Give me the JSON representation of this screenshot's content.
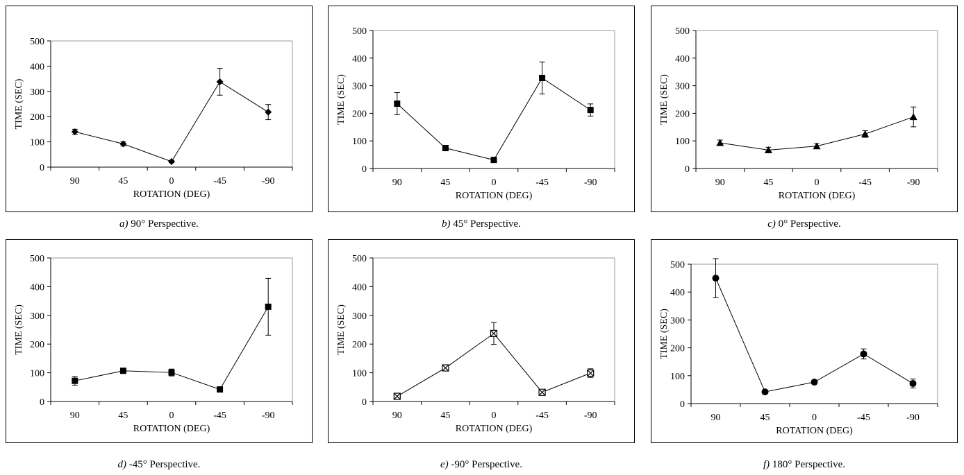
{
  "chart_data": [
    {
      "type": "line",
      "caption_label": "a)",
      "caption_text": "90° Perspective.",
      "xlabel": "ROTATION (DEG)",
      "ylabel": "TIME (SEC)",
      "categories": [
        "90",
        "45",
        "0",
        "-45",
        "-90"
      ],
      "y_ticks": [
        "0",
        "100",
        "200",
        "300",
        "400",
        "500"
      ],
      "ylim": [
        0,
        500
      ],
      "marker": "diamond",
      "series": [
        {
          "values": [
            140,
            92,
            22,
            338,
            218
          ],
          "errors": [
            10,
            8,
            4,
            53,
            30
          ]
        }
      ]
    },
    {
      "type": "line",
      "caption_label": "b)",
      "caption_text": "45° Perspective.",
      "xlabel": "ROTATION (DEG)",
      "ylabel": "TIME (SEC)",
      "categories": [
        "90",
        "45",
        "0",
        "-45",
        "-90"
      ],
      "y_ticks": [
        "0",
        "100",
        "200",
        "300",
        "400",
        "500"
      ],
      "ylim": [
        0,
        500
      ],
      "marker": "square",
      "series": [
        {
          "values": [
            235,
            74,
            31,
            328,
            212
          ],
          "errors": [
            40,
            6,
            4,
            58,
            22
          ]
        }
      ]
    },
    {
      "type": "line",
      "caption_label": "c)",
      "caption_text": "0° Perspective.",
      "xlabel": "ROTATION (DEG)",
      "ylabel": "TIME (SEC)",
      "categories": [
        "90",
        "45",
        "0",
        "-45",
        "-90"
      ],
      "y_ticks": [
        "0",
        "100",
        "200",
        "300",
        "400",
        "500"
      ],
      "ylim": [
        0,
        500
      ],
      "marker": "triangle",
      "series": [
        {
          "values": [
            93,
            67,
            81,
            125,
            187
          ],
          "errors": [
            10,
            10,
            9,
            12,
            36
          ]
        }
      ]
    },
    {
      "type": "line",
      "caption_label": "d)",
      "caption_text": "-45° Perspective.",
      "xlabel": "ROTATION (DEG)",
      "ylabel": "TIME (SEC)",
      "categories": [
        "90",
        "45",
        "0",
        "-45",
        "-90"
      ],
      "y_ticks": [
        "0",
        "100",
        "200",
        "300",
        "400",
        "500"
      ],
      "ylim": [
        0,
        500
      ],
      "marker": "square",
      "series": [
        {
          "values": [
            72,
            107,
            101,
            42,
            330
          ],
          "errors": [
            15,
            8,
            12,
            4,
            99
          ]
        }
      ]
    },
    {
      "type": "line",
      "caption_label": "e)",
      "caption_text": "-90° Perspective.",
      "xlabel": "ROTATION (DEG)",
      "ylabel": "TIME (SEC)",
      "categories": [
        "90",
        "45",
        "0",
        "-45",
        "-90"
      ],
      "y_ticks": [
        "0",
        "100",
        "200",
        "300",
        "400",
        "500"
      ],
      "ylim": [
        0,
        500
      ],
      "marker": "xsquare",
      "series": [
        {
          "values": [
            18,
            117,
            237,
            32,
            99
          ],
          "errors": [
            3,
            10,
            38,
            4,
            15
          ]
        }
      ]
    },
    {
      "type": "line",
      "caption_label": "f)",
      "caption_text": "180° Perspective.",
      "xlabel": "ROTATION (DEG)",
      "ylabel": "TIME (SEC)",
      "categories": [
        "90",
        "45",
        "0",
        "-45",
        "-90"
      ],
      "y_ticks": [
        "0",
        "100",
        "200",
        "300",
        "400",
        "500"
      ],
      "ylim": [
        0,
        500
      ],
      "marker": "circle",
      "series": [
        {
          "values": [
            450,
            42,
            77,
            178,
            72
          ],
          "errors": [
            70,
            4,
            5,
            18,
            16
          ]
        }
      ]
    }
  ]
}
